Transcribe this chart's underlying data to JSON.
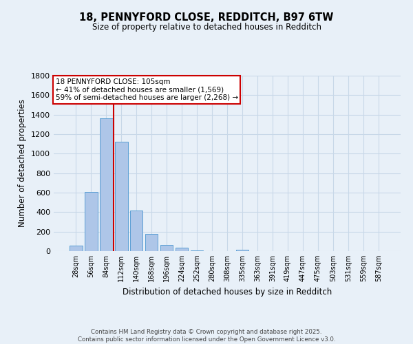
{
  "title": "18, PENNYFORD CLOSE, REDDITCH, B97 6TW",
  "subtitle": "Size of property relative to detached houses in Redditch",
  "xlabel": "Distribution of detached houses by size in Redditch",
  "ylabel": "Number of detached properties",
  "footer_line1": "Contains HM Land Registry data © Crown copyright and database right 2025.",
  "footer_line2": "Contains public sector information licensed under the Open Government Licence v3.0.",
  "categories": [
    "28sqm",
    "56sqm",
    "84sqm",
    "112sqm",
    "140sqm",
    "168sqm",
    "196sqm",
    "224sqm",
    "252sqm",
    "280sqm",
    "308sqm",
    "335sqm",
    "363sqm",
    "391sqm",
    "419sqm",
    "447sqm",
    "475sqm",
    "503sqm",
    "531sqm",
    "559sqm",
    "587sqm"
  ],
  "values": [
    55,
    610,
    1360,
    1120,
    420,
    175,
    65,
    35,
    10,
    0,
    0,
    15,
    0,
    0,
    0,
    0,
    0,
    0,
    0,
    0,
    0
  ],
  "bar_color": "#aec6e8",
  "bar_edge_color": "#5a9fd4",
  "grid_color": "#c8d8e8",
  "background_color": "#e8f0f8",
  "annotation_box_text": "18 PENNYFORD CLOSE: 105sqm\n← 41% of detached houses are smaller (1,569)\n59% of semi-detached houses are larger (2,268) →",
  "annotation_box_color": "#ffffff",
  "annotation_box_edge_color": "#cc0000",
  "vline_color": "#cc0000",
  "ylim": [
    0,
    1800
  ],
  "yticks": [
    0,
    200,
    400,
    600,
    800,
    1000,
    1200,
    1400,
    1600,
    1800
  ]
}
